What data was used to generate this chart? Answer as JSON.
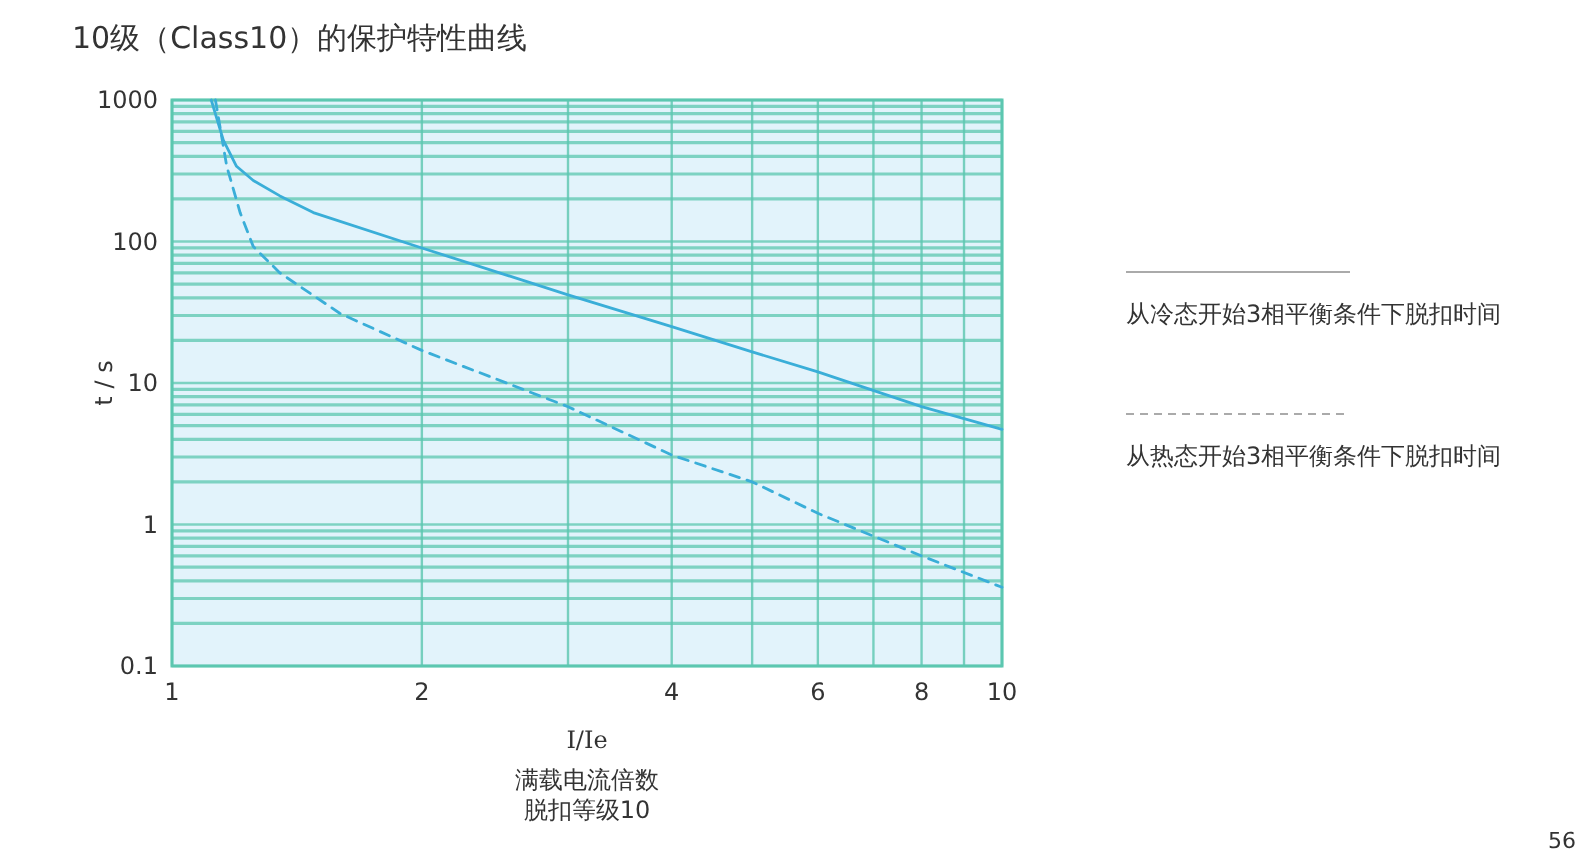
{
  "chart_data": {
    "type": "line",
    "title": "10级（Class10）的保护特性曲线",
    "xlabel": "I/Ie",
    "ylabel": "t / s",
    "annotations": [
      "满载电流倍数",
      "脱扣等级10",
      "56"
    ],
    "log": "xy",
    "grid": true,
    "legend": "right",
    "marker": "none",
    "xlim": [
      1,
      10
    ],
    "ylim": [
      0.1,
      1000
    ],
    "xticks": [
      1,
      2,
      {
        "value": 3,
        "label": null
      },
      4,
      {
        "value": 5,
        "label": null
      },
      6,
      {
        "value": 7,
        "label": null
      },
      8,
      {
        "value": 9,
        "label": null
      },
      10
    ],
    "yticks": [
      0.1,
      {
        "value": 0.2,
        "label": null
      },
      {
        "value": 0.3,
        "label": null
      },
      {
        "value": 0.4,
        "label": null
      },
      {
        "value": 0.5,
        "label": null
      },
      {
        "value": 0.6,
        "label": null
      },
      {
        "value": 0.7,
        "label": null
      },
      {
        "value": 0.8,
        "label": null
      },
      {
        "value": 0.9,
        "label": null
      },
      1,
      {
        "value": 2,
        "label": null
      },
      {
        "value": 3,
        "label": null
      },
      {
        "value": 4,
        "label": null
      },
      {
        "value": 5,
        "label": null
      },
      {
        "value": 6,
        "label": null
      },
      {
        "value": 7,
        "label": null
      },
      {
        "value": 8,
        "label": null
      },
      {
        "value": 9,
        "label": null
      },
      10,
      {
        "value": 20,
        "label": null
      },
      {
        "value": 30,
        "label": null
      },
      {
        "value": 40,
        "label": null
      },
      {
        "value": 50,
        "label": null
      },
      {
        "value": 60,
        "label": null
      },
      {
        "value": 70,
        "label": null
      },
      {
        "value": 80,
        "label": null
      },
      {
        "value": 90,
        "label": null
      },
      100,
      {
        "value": 200,
        "label": null
      },
      {
        "value": 300,
        "label": null
      },
      {
        "value": 400,
        "label": null
      },
      {
        "value": 500,
        "label": null
      },
      {
        "value": 600,
        "label": null
      },
      {
        "value": 700,
        "label": null
      },
      {
        "value": 800,
        "label": null
      },
      {
        "value": 900,
        "label": null
      },
      1000
    ],
    "series": [
      {
        "name": "从冷态开始3相平衡条件下脱扣时间",
        "color": "#3aaed8",
        "line_style": "solid",
        "x": [
          1.115,
          1.153,
          1.196,
          1.253,
          1.349,
          1.48,
          2,
          3,
          4,
          5,
          6,
          8,
          10
        ],
        "values": [
          1000,
          520,
          340,
          270,
          210,
          160,
          90,
          42,
          25,
          16.6,
          12,
          6.8,
          4.7
        ]
      },
      {
        "name": "从热态开始3相平衡条件下脱扣时间",
        "color": "#3aaed8",
        "line_style": "dashed",
        "x": [
          1.128,
          1.164,
          1.208,
          1.253,
          1.349,
          1.594,
          2,
          3,
          4,
          5,
          6,
          8,
          10
        ],
        "values": [
          1000,
          340,
          160,
          92,
          60,
          31,
          17,
          6.8,
          3.1,
          2,
          1.2,
          0.6,
          0.36
        ]
      }
    ]
  }
}
